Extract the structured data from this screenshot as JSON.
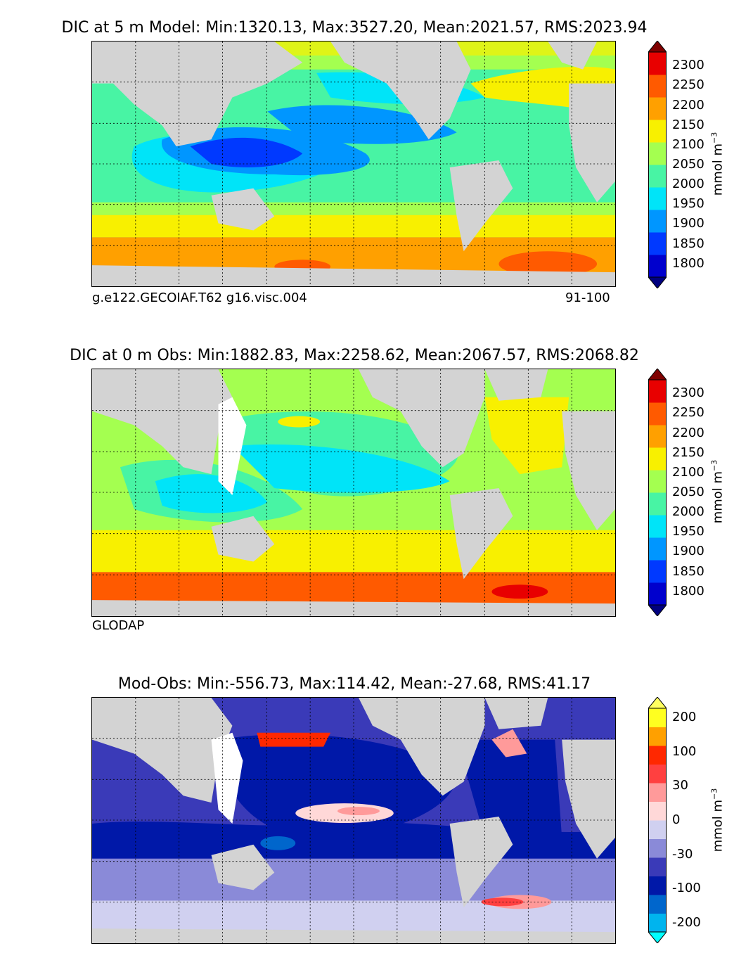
{
  "chart_data": [
    {
      "type": "heatmap",
      "title": "DIC at 5 m Model: Min:1320.13, Max:3527.20, Mean:2021.57, RMS:2023.94",
      "footer_left": "g.e122.GECOIAF.T62 g16.visc.004",
      "footer_right": "91-100",
      "colorbar": {
        "units_base": "mmol m",
        "units_exp": "−3",
        "tick_labels": [
          "2300",
          "2250",
          "2200",
          "2150",
          "2100",
          "2050",
          "2000",
          "1950",
          "1900",
          "1850",
          "1800"
        ],
        "levels": [
          1800,
          1850,
          1900,
          1950,
          2000,
          2050,
          2100,
          2150,
          2200,
          2250,
          2300
        ],
        "colors": [
          "#00007f",
          "#0000cd",
          "#0039ff",
          "#0096ff",
          "#00e4f8",
          "#48f4a4",
          "#a4ff50",
          "#f8f000",
          "#ffa000",
          "#ff5a00",
          "#e80000",
          "#7f0000"
        ],
        "extend": "both"
      }
    },
    {
      "type": "heatmap",
      "title": "DIC at 0 m Obs: Min:1882.83, Max:2258.62, Mean:2067.57, RMS:2068.82",
      "footer_left": "GLODAP",
      "footer_right": "",
      "colorbar": {
        "units_base": "mmol m",
        "units_exp": "−3",
        "tick_labels": [
          "2300",
          "2250",
          "2200",
          "2150",
          "2100",
          "2050",
          "2000",
          "1950",
          "1900",
          "1850",
          "1800"
        ],
        "levels": [
          1800,
          1850,
          1900,
          1950,
          2000,
          2050,
          2100,
          2150,
          2200,
          2250,
          2300
        ],
        "colors": [
          "#00007f",
          "#0000cd",
          "#0039ff",
          "#0096ff",
          "#00e4f8",
          "#48f4a4",
          "#a4ff50",
          "#f8f000",
          "#ffa000",
          "#ff5a00",
          "#e80000",
          "#7f0000"
        ],
        "extend": "both"
      }
    },
    {
      "type": "heatmap",
      "title": "Mod-Obs: Min:-556.73, Max:114.42, Mean:-27.68, RMS:41.17",
      "footer_left": "",
      "footer_right": "",
      "colorbar": {
        "units_base": "mmol m",
        "units_exp": "−3",
        "tick_labels": [
          "200",
          "100",
          "30",
          "0",
          "-30",
          "-100",
          "-200"
        ],
        "levels": [
          -200,
          -150,
          -100,
          -50,
          -30,
          -10,
          0,
          10,
          30,
          50,
          100,
          150,
          200
        ],
        "colors": [
          "#00ffff",
          "#00b4ee",
          "#0066cc",
          "#0018a8",
          "#3a3ab8",
          "#8a8ad8",
          "#d0d0f0",
          "#ffd8d8",
          "#ff9a9a",
          "#ff4040",
          "#ff2800",
          "#ffa000",
          "#ffff20",
          "#ffff60"
        ],
        "extend": "both"
      }
    }
  ]
}
